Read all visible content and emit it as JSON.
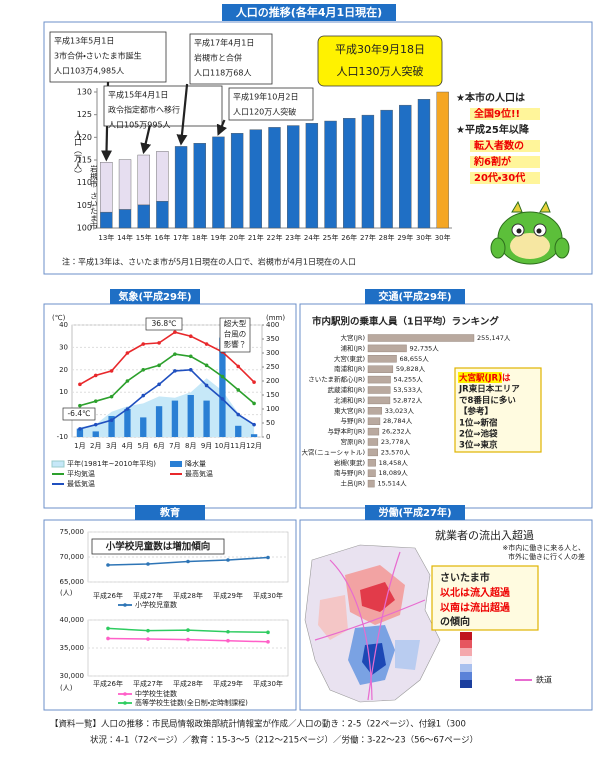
{
  "chart_data": [
    {
      "type": "bar",
      "title": "人口の推移(各年4月1日現在)",
      "ylabel": "人口（万人）",
      "categories": [
        "13年",
        "14年",
        "15年",
        "16年",
        "17年",
        "18年",
        "19年",
        "20年",
        "21年",
        "22年",
        "23年",
        "24年",
        "25年",
        "26年",
        "27年",
        "28年",
        "29年",
        "30年",
        "30年"
      ],
      "ylim": [
        100,
        130
      ],
      "yticks": [
        100,
        105,
        110,
        115,
        120,
        125,
        130
      ],
      "grid": false,
      "series": [
        {
          "name": "さいたま市",
          "colors": [
            "#1f6fc5",
            "#1f6fc5",
            "#1f6fc5",
            "#1f6fc5",
            "#1f6fc5",
            "#1f6fc5",
            "#1f6fc5",
            "#1f6fc5",
            "#1f6fc5",
            "#1f6fc5",
            "#1f6fc5",
            "#1f6fc5",
            "#1f6fc5",
            "#1f6fc5",
            "#1f6fc5",
            "#1f6fc5",
            "#1f6fc5",
            "#1f6fc5",
            "#f5a623"
          ],
          "values": [
            103.5,
            104.1,
            105.1,
            105.9,
            118.0,
            118.7,
            120.1,
            120.9,
            121.7,
            122.2,
            122.6,
            123.1,
            123.6,
            124.2,
            124.9,
            126.0,
            127.1,
            128.4,
            130.0
          ]
        },
        {
          "name": "岩槻市",
          "color": "#e6def0",
          "values": [
            11.0,
            11.0,
            11.0,
            11.0,
            null,
            null,
            null,
            null,
            null,
            null,
            null,
            null,
            null,
            null,
            null,
            null,
            null,
            null,
            null
          ]
        }
      ],
      "annotations": [
        {
          "lines": [
            "平成13年5月1日",
            "3市合併・さいたま市誕生",
            "人口103万4,985人"
          ]
        },
        {
          "lines": [
            "平成15年4月1日",
            "政令指定都市へ移行",
            "人口105万995人"
          ]
        },
        {
          "lines": [
            "平成17年4月1日",
            "岩槻市と合併",
            "人口118万68人"
          ]
        },
        {
          "lines": [
            "平成19年10月2日",
            "人口120万人突破"
          ]
        }
      ],
      "highlight": [
        "平成30年9月18日",
        "人口130万人突破"
      ],
      "facts": [
        "★本市の人口は",
        "全国9位!!",
        "★平成25年以降",
        "転入者数の",
        "約6割が",
        "20代・30代"
      ],
      "note": "注：平成13年は、さいたま市が5月1日現在の人口で、岩槻市が4月1日現在の人口"
    },
    {
      "type": "combo",
      "title": "気象(平成29年)",
      "categories": [
        "1月",
        "2月",
        "3月",
        "4月",
        "5月",
        "6月",
        "7月",
        "8月",
        "9月",
        "10月",
        "11月",
        "12月"
      ],
      "yunit": "(℃)",
      "y2unit": "(mm)",
      "ylim": [
        -10,
        40
      ],
      "yticks": [
        -10,
        0,
        10,
        20,
        30,
        40
      ],
      "y2lim": [
        0,
        400
      ],
      "y2ticks": [
        0,
        50,
        100,
        150,
        200,
        250,
        300,
        350,
        400
      ],
      "grid": true,
      "series": [
        {
          "name": "平年(1981年~2010年平均)",
          "kind": "area",
          "axis": "y2",
          "color": "#c6e8f8",
          "values": [
            35,
            45,
            90,
            110,
            120,
            145,
            140,
            160,
            210,
            165,
            85,
            40
          ]
        },
        {
          "name": "降水量",
          "kind": "bar",
          "axis": "y2",
          "color": "#2a7fd4",
          "values": [
            30,
            20,
            75,
            100,
            70,
            110,
            130,
            150,
            130,
            355,
            40,
            10
          ]
        },
        {
          "name": "平均気温",
          "kind": "line",
          "color": "#2ca02c",
          "values": [
            4.0,
            6.0,
            8.0,
            15.0,
            20.0,
            22.0,
            27.0,
            26.0,
            22.0,
            17.0,
            11.0,
            5.0
          ]
        },
        {
          "name": "最高気温",
          "kind": "line",
          "color": "#e8282b",
          "values": [
            13.5,
            17.5,
            19.5,
            27.5,
            31.5,
            32.0,
            36.8,
            35.0,
            31.5,
            28.0,
            21.5,
            14.5
          ]
        },
        {
          "name": "最低気温",
          "kind": "line",
          "color": "#1f4fbf",
          "values": [
            -6.4,
            -4.5,
            -2.5,
            2.5,
            8.5,
            13.5,
            19.5,
            20.0,
            13.0,
            7.0,
            0.0,
            -4.5
          ]
        }
      ],
      "annotations": [
        {
          "lines": [
            "36.8℃"
          ]
        },
        {
          "lines": [
            "-6.4℃"
          ]
        },
        {
          "lines": [
            "超大型",
            "台風の",
            "影響？"
          ]
        }
      ]
    },
    {
      "type": "barh",
      "title": "交通(平成29年)",
      "subtitle": "市内駅別の乗車人員（1日平均）ランキング",
      "categories": [
        "大宮(JR)",
        "浦和(JR)",
        "大宮(東武)",
        "南浦和(JR)",
        "さいたま新都心(JR)",
        "武蔵浦和(JR)",
        "北浦和(JR)",
        "東大宮(JR)",
        "与野(JR)",
        "与野本町(JR)",
        "宮原(JR)",
        "大宮(ニューシャトル)",
        "岩槻(東武)",
        "南与野(JR)",
        "土呂(JR)"
      ],
      "values": [
        255147,
        92735,
        68655,
        59828,
        54255,
        53533,
        52872,
        33023,
        28784,
        26232,
        23778,
        23570,
        18458,
        18089,
        15514
      ],
      "value_labels": [
        "255,147人",
        "92,735人",
        "68,655人",
        "59,828人",
        "54,255人",
        "53,533人",
        "52,872人",
        "33,023人",
        "28,784人",
        "26,232人",
        "23,778人",
        "23,570人",
        "18,458人",
        "18,089人",
        "15,514人"
      ],
      "xlim": [
        0,
        260000
      ],
      "color": "#b9a99f",
      "callout": [
        "大宮駅(JR)は",
        "JR東日本エリア",
        "で8番目に多い",
        "【参考】",
        "1位⇒新宿",
        "2位⇒池袋",
        "3位⇒東京"
      ]
    },
    {
      "type": "line",
      "title": "教育",
      "subtitle": "小学校児童数は増加傾向",
      "categories": [
        "平成26年",
        "平成27年",
        "平成28年",
        "平成29年",
        "平成30年"
      ],
      "yunit": "(人)",
      "ylim": [
        65000,
        75000
      ],
      "yticks": [
        {
          "value": 65000,
          "label": "65,000"
        },
        {
          "value": 70000,
          "label": "70,000"
        },
        {
          "value": 75000,
          "label": "75,000"
        }
      ],
      "series": [
        {
          "name": "小学校児童数",
          "color": "#2e75b6",
          "values": [
            68400,
            68600,
            69100,
            69400,
            69900
          ]
        }
      ]
    },
    {
      "type": "line",
      "categories": [
        "平成26年",
        "平成27年",
        "平成28年",
        "平成29年",
        "平成30年"
      ],
      "yunit": "(人)",
      "ylim": [
        30000,
        40000
      ],
      "yticks": [
        {
          "value": 30000,
          "label": "30,000"
        },
        {
          "value": 35000,
          "label": "35,000"
        },
        {
          "value": 40000,
          "label": "40,000"
        }
      ],
      "series": [
        {
          "name": "中学校生徒数",
          "color": "#ff5fc8",
          "values": [
            36700,
            36600,
            36500,
            36300,
            36100
          ]
        },
        {
          "name": "高等学校生徒数(全日制・定時制課程)",
          "color": "#2ecc60",
          "values": [
            38500,
            38100,
            38200,
            37900,
            37800
          ]
        }
      ]
    }
  ],
  "labor": {
    "title": "労働(平成27年)",
    "map_title": "就業者の流出入超過",
    "map_notes": [
      "※市内に働きに来る人と、",
      "市外に働きに行く人の差"
    ],
    "callout": [
      "さいたま市",
      "以北は流入超過",
      "以南は流出超過",
      "の傾向"
    ],
    "rail_legend": "鉄道"
  },
  "sources": [
    "【資料一覧】人口の推移：市民局情報政策部統計情報室が作成／人口の動き：2-5（22ページ）、付録1（300",
    "状況：4-1（72ページ）／教育：15-3～5（212～215ページ）／労働：3-22～23（56～67ページ）"
  ]
}
